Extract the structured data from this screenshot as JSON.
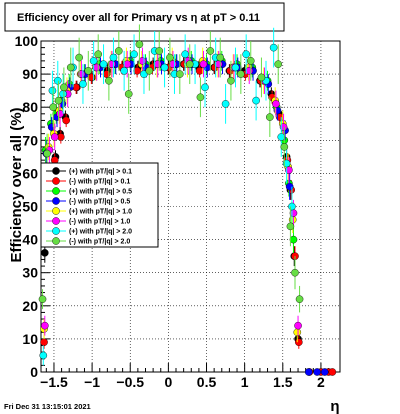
{
  "chart_data": {
    "type": "scatter",
    "title": "Efficiency over all for Primary vs    η at pT > 0.11",
    "xlabel": "η",
    "ylabel": "Efficiency over all (%)",
    "xlim": [
      -1.67,
      2.25
    ],
    "ylim": [
      0,
      100
    ],
    "x_ticks": [
      {
        "value": -1.5,
        "label": "−1.5"
      },
      {
        "value": -1.0,
        "label": "−1"
      },
      {
        "value": -0.5,
        "label": "−0.5"
      },
      {
        "value": 0.0,
        "label": "0"
      },
      {
        "value": 0.5,
        "label": "0.5"
      },
      {
        "value": 1.0,
        "label": "1"
      },
      {
        "value": 1.5,
        "label": "1.5"
      },
      {
        "value": 2.0,
        "label": "2"
      }
    ],
    "y_ticks": [
      {
        "value": 0,
        "label": "0"
      },
      {
        "value": 10,
        "label": "10"
      },
      {
        "value": 20,
        "label": "20"
      },
      {
        "value": 30,
        "label": "30"
      },
      {
        "value": 40,
        "label": "40"
      },
      {
        "value": 50,
        "label": "50"
      },
      {
        "value": 60,
        "label": "60"
      },
      {
        "value": 70,
        "label": "70"
      },
      {
        "value": 80,
        "label": "80"
      },
      {
        "value": 90,
        "label": "90"
      },
      {
        "value": 100,
        "label": "100"
      }
    ],
    "grid": true,
    "legend_position": "center-left",
    "timestamp": "Fri Dec 31 13:15:01 2021",
    "series": [
      {
        "name": "(+) with pT/|q| > 0.1",
        "color": "#000000",
        "marker": "circle",
        "x": [
          -1.62,
          -1.55,
          -1.48,
          -1.42,
          -1.35,
          -1.2,
          -1.0,
          -0.8,
          -0.6,
          -0.4,
          -0.2,
          0.0,
          0.2,
          0.4,
          0.6,
          0.8,
          1.0,
          1.2,
          1.35,
          1.45,
          1.55,
          1.6,
          1.65,
          1.7
        ],
        "y": [
          36,
          61,
          65,
          72,
          77,
          86,
          89,
          91,
          92,
          92,
          93,
          92,
          93,
          92,
          92,
          91,
          91,
          88,
          84,
          78,
          65,
          55,
          35,
          10
        ],
        "err": [
          3,
          2,
          2,
          2,
          2,
          2,
          2,
          2,
          2,
          2,
          2,
          2,
          2,
          2,
          2,
          2,
          2,
          2,
          2,
          2,
          2,
          3,
          3,
          2
        ]
      },
      {
        "name": "(-) with pT/|q| > 0.1",
        "color": "#ff0000",
        "marker": "circle",
        "x": [
          -1.63,
          -1.56,
          -1.49,
          -1.41,
          -1.34,
          -1.21,
          -1.01,
          -0.81,
          -0.61,
          -0.41,
          -0.21,
          0.01,
          0.21,
          0.41,
          0.61,
          0.81,
          1.01,
          1.21,
          1.36,
          1.46,
          1.56,
          1.61,
          1.66,
          1.71,
          1.85,
          2.0,
          2.1,
          2.15
        ],
        "y": [
          9,
          60,
          64,
          71,
          76,
          86,
          89,
          90,
          92,
          91,
          92,
          92,
          93,
          91,
          92,
          91,
          90,
          88,
          83,
          77,
          64,
          55,
          35,
          9,
          0,
          0,
          0,
          0
        ],
        "err": [
          2,
          2,
          2,
          2,
          2,
          2,
          2,
          2,
          2,
          2,
          2,
          2,
          2,
          2,
          2,
          2,
          2,
          2,
          2,
          2,
          2,
          3,
          3,
          2,
          0,
          0,
          0,
          0
        ]
      },
      {
        "name": "(+) with pT/|q| > 0.5",
        "color": "#00ff00",
        "marker": "circle",
        "x": [
          -1.61,
          -1.54,
          -1.47,
          -1.4,
          -1.3,
          -1.1,
          -0.9,
          -0.7,
          -0.5,
          -0.3,
          -0.1,
          0.1,
          0.3,
          0.5,
          0.7,
          0.9,
          1.1,
          1.3,
          1.42,
          1.52,
          1.58,
          1.64
        ],
        "y": [
          67,
          75,
          78,
          82,
          87,
          90,
          93,
          93,
          94,
          93,
          94,
          93,
          94,
          93,
          94,
          93,
          92,
          88,
          80,
          70,
          57,
          40
        ],
        "err": [
          4,
          3,
          3,
          3,
          3,
          3,
          3,
          3,
          3,
          3,
          3,
          3,
          3,
          3,
          3,
          3,
          3,
          3,
          3,
          3,
          4,
          4
        ]
      },
      {
        "name": "(-) with pT/|q| > 0.5",
        "color": "#0000ff",
        "marker": "circle",
        "x": [
          -1.6,
          -1.53,
          -1.46,
          -1.39,
          -1.29,
          -1.09,
          -0.89,
          -0.69,
          -0.49,
          -0.29,
          -0.09,
          0.11,
          0.31,
          0.51,
          0.71,
          0.91,
          1.11,
          1.31,
          1.43,
          1.53,
          1.59,
          1.84,
          1.95,
          2.05
        ],
        "y": [
          66,
          74,
          77,
          81,
          86,
          90,
          92,
          93,
          93,
          92,
          93,
          93,
          93,
          92,
          93,
          92,
          91,
          87,
          79,
          73,
          56,
          0,
          0,
          0
        ],
        "err": [
          4,
          3,
          3,
          3,
          3,
          3,
          3,
          3,
          3,
          3,
          3,
          3,
          3,
          3,
          3,
          3,
          3,
          3,
          3,
          3,
          4,
          0,
          0,
          0
        ]
      },
      {
        "name": "(+) with pT/|q| > 1.0",
        "color": "#ffff00",
        "marker": "circle",
        "x": [
          -1.63,
          -1.57,
          -1.5,
          -1.43,
          -1.33,
          -1.15,
          -0.95,
          -0.75,
          -0.55,
          -0.35,
          -0.15,
          0.05,
          0.25,
          0.45,
          0.65,
          0.85,
          1.05,
          1.25,
          1.4,
          1.5,
          1.57,
          1.63,
          1.69
        ],
        "y": [
          13,
          68,
          72,
          79,
          85,
          90,
          92,
          93,
          94,
          93,
          93,
          94,
          93,
          94,
          93,
          92,
          92,
          88,
          82,
          75,
          62,
          46,
          12
        ],
        "err": [
          3,
          4,
          4,
          4,
          4,
          4,
          4,
          4,
          4,
          4,
          4,
          4,
          4,
          4,
          4,
          4,
          4,
          4,
          4,
          4,
          4,
          4,
          3
        ]
      },
      {
        "name": "(-) with pT/|q| > 1.0",
        "color": "#ff00ff",
        "marker": "circle",
        "x": [
          -1.62,
          -1.56,
          -1.49,
          -1.42,
          -1.32,
          -1.14,
          -0.94,
          -0.74,
          -0.54,
          -0.34,
          -0.14,
          0.06,
          0.26,
          0.46,
          0.66,
          0.86,
          1.06,
          1.26,
          1.41,
          1.51,
          1.58,
          1.64,
          1.7
        ],
        "y": [
          14,
          67,
          71,
          78,
          84,
          90,
          92,
          93,
          93,
          94,
          93,
          93,
          94,
          93,
          93,
          92,
          91,
          88,
          81,
          74,
          61,
          48,
          14
        ],
        "err": [
          3,
          4,
          4,
          4,
          4,
          4,
          4,
          4,
          4,
          4,
          4,
          4,
          4,
          4,
          4,
          4,
          4,
          4,
          4,
          4,
          4,
          4,
          3
        ]
      },
      {
        "name": "(+) with pT/|q| > 2.0",
        "color": "#00ffff",
        "marker": "circle",
        "x": [
          -1.64,
          -1.58,
          -1.52,
          -1.45,
          -1.38,
          -1.25,
          -1.12,
          -0.98,
          -0.85,
          -0.72,
          -0.58,
          -0.45,
          -0.32,
          -0.18,
          -0.05,
          0.08,
          0.22,
          0.35,
          0.48,
          0.62,
          0.75,
          0.88,
          1.02,
          1.15,
          1.28,
          1.38,
          1.48,
          1.55,
          1.62
        ],
        "y": [
          5,
          56,
          85,
          88,
          84,
          92,
          87,
          94,
          93,
          95,
          91,
          96,
          90,
          97,
          92,
          90,
          96,
          93,
          86,
          95,
          81,
          92,
          96,
          82,
          88,
          98,
          71,
          63,
          50
        ],
        "err": [
          3,
          6,
          6,
          6,
          6,
          6,
          6,
          6,
          6,
          6,
          6,
          6,
          6,
          6,
          6,
          6,
          6,
          6,
          6,
          6,
          6,
          6,
          6,
          6,
          6,
          6,
          6,
          6,
          6
        ]
      },
      {
        "name": "(-) with pT/|q| > 2.0",
        "color": "#66dd44",
        "marker": "circle",
        "x": [
          -1.65,
          -1.59,
          -1.51,
          -1.44,
          -1.37,
          -1.28,
          -1.17,
          -1.05,
          -0.92,
          -0.78,
          -0.65,
          -0.52,
          -0.38,
          -0.25,
          -0.12,
          0.02,
          0.15,
          0.28,
          0.42,
          0.55,
          0.68,
          0.82,
          0.95,
          1.08,
          1.22,
          1.33,
          1.44,
          1.52,
          1.6,
          1.66,
          1.72
        ],
        "y": [
          22,
          66,
          80,
          82,
          86,
          92,
          95,
          91,
          96,
          88,
          97,
          84,
          99,
          91,
          97,
          95,
          90,
          93,
          83,
          97,
          95,
          88,
          90,
          94,
          89,
          77,
          93,
          68,
          44,
          30,
          22
        ],
        "err": [
          3,
          6,
          6,
          6,
          6,
          6,
          6,
          6,
          6,
          6,
          6,
          6,
          6,
          6,
          6,
          6,
          6,
          6,
          6,
          6,
          6,
          6,
          6,
          6,
          6,
          6,
          6,
          6,
          6,
          5,
          4
        ]
      }
    ]
  }
}
